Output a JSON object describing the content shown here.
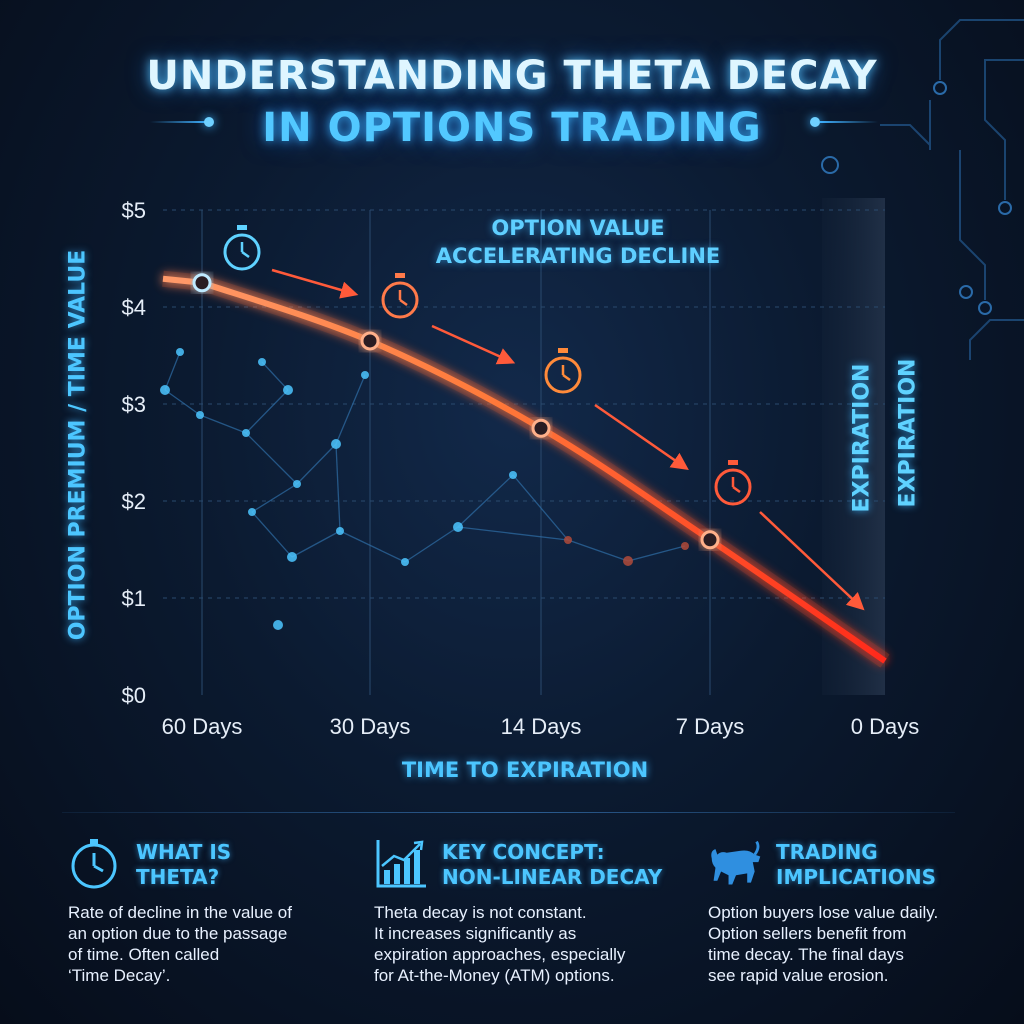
{
  "title": {
    "line1": "UNDERSTANDING THETA DECAY",
    "line2": "IN OPTIONS TRADING"
  },
  "colors": {
    "accent": "#4cc6ff",
    "decay_curve": "#ff5a2a",
    "network": "#3aa8e0",
    "background": "#0b1a30"
  },
  "chart_data": {
    "type": "line",
    "title": "",
    "xlabel": "TIME TO EXPIRATION",
    "ylabel": "OPTION PREMIUM / TIME VALUE",
    "categories": [
      "60 Days",
      "30 Days",
      "14 Days",
      "7 Days",
      "0 Days"
    ],
    "yticks": [
      "$0",
      "$1",
      "$2",
      "$3",
      "$4",
      "$5"
    ],
    "ylim": [
      0,
      5
    ],
    "grid": true,
    "series": [
      {
        "values": [
          4.25,
          3.65,
          2.75,
          1.6,
          0.35
        ],
        "color": "#ff5a2a"
      }
    ],
    "annotations": {
      "decline": [
        "OPTION VALUE",
        "ACCELERATING DECLINE"
      ],
      "expiration_labels": [
        "EXPIRATION",
        "EXPIRATION"
      ]
    },
    "icons": [
      "stopwatch-icon",
      "stopwatch-icon",
      "stopwatch-icon",
      "stopwatch-icon"
    ]
  },
  "panels": [
    {
      "icon": "clock-icon",
      "heading": "WHAT IS\nTHETA?",
      "text": "Rate of decline in the value of\nan option due to the passage\nof time. Often called\n‘Time Decay’."
    },
    {
      "icon": "rising-chart-icon",
      "heading": "KEY CONCEPT:\nNON-LINEAR DECAY",
      "text": "Theta decay is not constant.\nIt increases significantly as\nexpiration approaches, especially\nfor At-the-Money (ATM) options."
    },
    {
      "icon": "bull-icon",
      "heading": "TRADING\nIMPLICATIONS",
      "text": "Option buyers lose value daily.\nOption sellers benefit from\ntime decay. The final days\nsee rapid value erosion."
    }
  ]
}
